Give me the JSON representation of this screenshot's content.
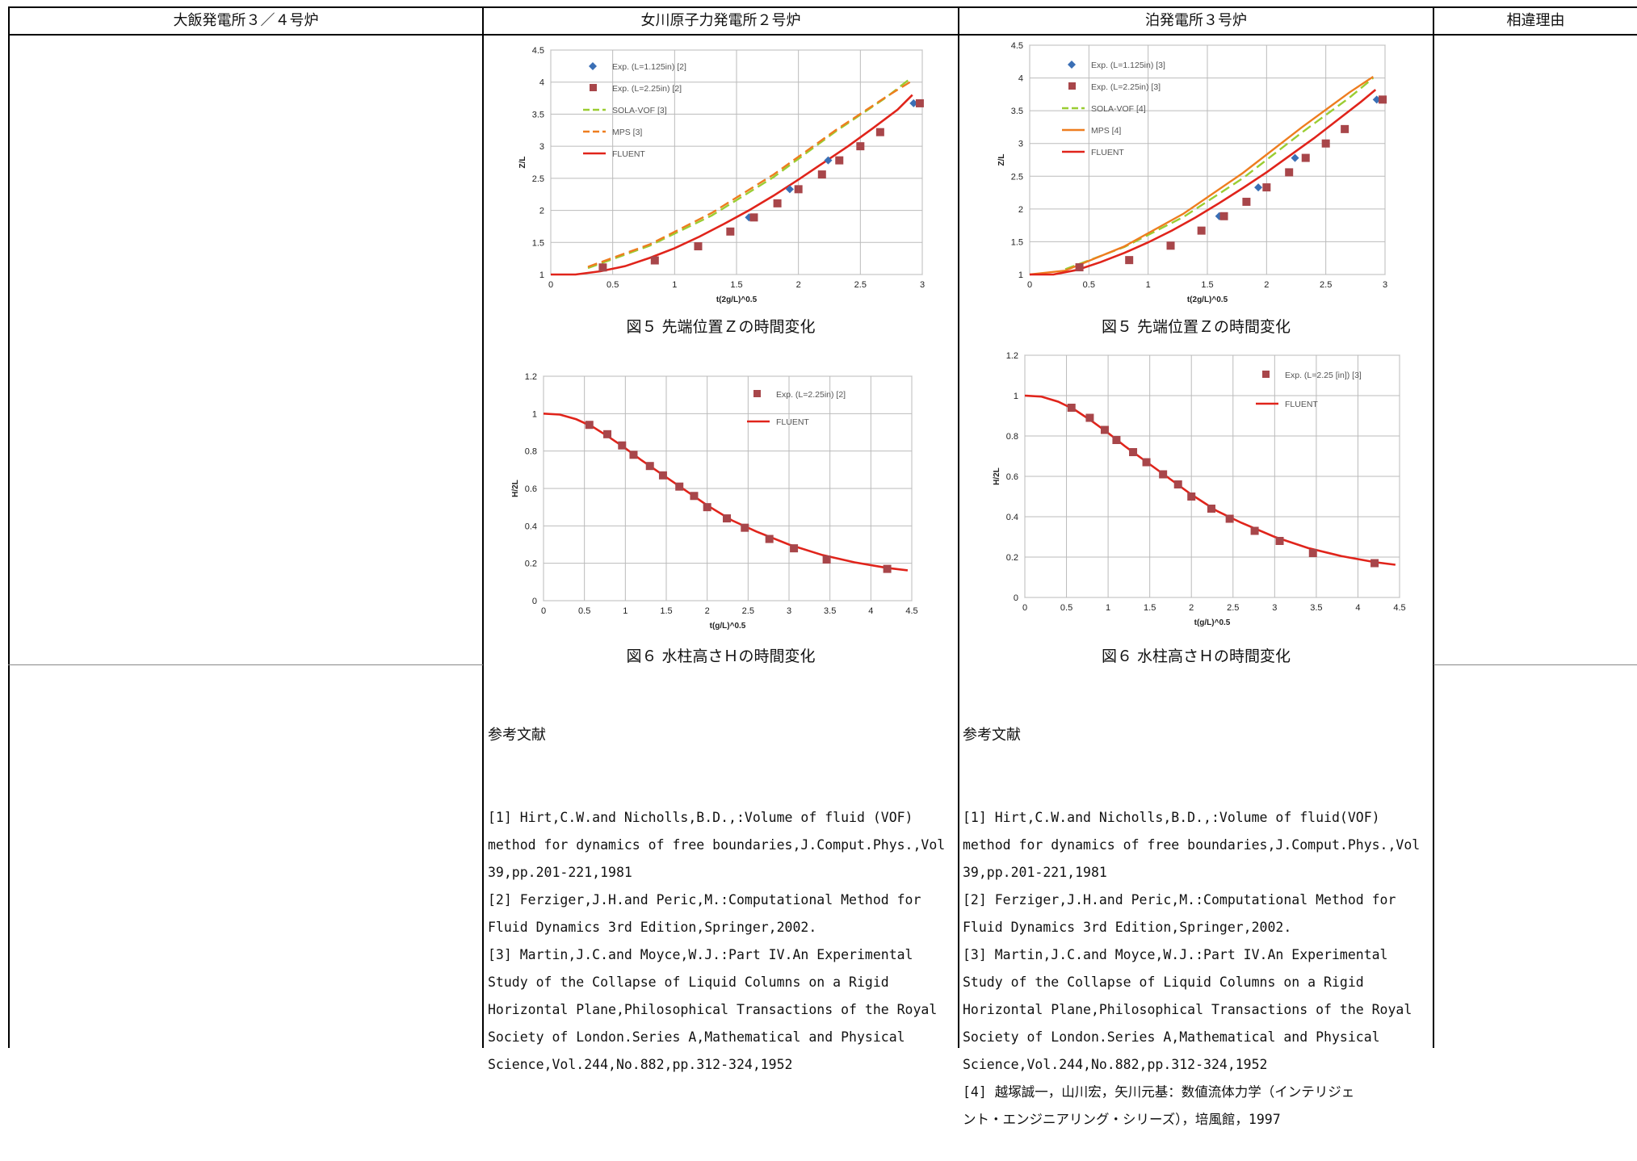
{
  "headers": [
    "大飯発電所３／４号炉",
    "女川原子力発電所２号炉",
    "泊発電所３号炉",
    "相違理由"
  ],
  "columns": {
    "onagawa": {
      "fig5_caption": "図５ 先端位置Ｚの時間変化",
      "fig6_caption": "図６ 水柱高さＨの時間変化",
      "refs_title": "参考文献",
      "refs": [
        "[1] Hirt,C.W.and Nicholls,B.D.,:Volume of fluid (VOF)",
        "method for dynamics of free boundaries,J.Comput.Phys.,Vol",
        "39,pp.201-221,1981",
        "[2] Ferziger,J.H.and Peric,M.:Computational Method for",
        "Fluid Dynamics 3rd Edition,Springer,2002.",
        "[3] Martin,J.C.and Moyce,W.J.:Part IV.An Experimental",
        "Study of the Collapse of Liquid Columns on a Rigid",
        "Horizontal Plane,Philosophical Transactions of the Royal",
        "Society of London.Series A,Mathematical and Physical",
        "Science,Vol.244,No.882,pp.312-324,1952"
      ]
    },
    "tomari": {
      "fig5_caption": "図５ 先端位置Ｚの時間変化",
      "fig6_caption": "図６ 水柱高さＨの時間変化",
      "refs_title": "参考文献",
      "refs": [
        "[1] Hirt,C.W.and Nicholls,B.D.,:Volume of fluid(VOF)",
        "method for dynamics of free boundaries,J.Comput.Phys.,Vol",
        "39,pp.201-221,1981",
        "[2] Ferziger,J.H.and Peric,M.:Computational Method for",
        "Fluid Dynamics 3rd Edition,Springer,2002.",
        "[3] Martin,J.C.and Moyce,W.J.:Part IV.An Experimental",
        "Study of the Collapse of Liquid Columns on a Rigid",
        "Horizontal Plane,Philosophical Transactions of the Royal",
        "Society of London.Series A,Mathematical and Physical",
        "Science,Vol.244,No.882,pp.312-324,1952",
        "[4] 越塚誠一，山川宏，矢川元基：数値流体力学（インテリジェ",
        "ント・エンジニアリング・シリーズ），培風館，1997"
      ]
    }
  },
  "chart_data": [
    {
      "id": "onagawa-fig5",
      "type": "scatter",
      "xlabel": "t(2g/L)^0.5",
      "ylabel": "Z/L",
      "xlim": [
        0,
        3
      ],
      "ylim": [
        1,
        4.5
      ],
      "xticks": [
        "0",
        "0.5",
        "1",
        "1.5",
        "2",
        "2.5",
        "3"
      ],
      "yticks": [
        "1",
        "1.5",
        "2",
        "2.5",
        "3",
        "3.5",
        "4",
        "4.5"
      ],
      "grid": true,
      "legend": "top-left",
      "series": [
        {
          "name": "Exp. (L=1.125in) [2]",
          "kind": "diamond",
          "color": "#3a6fb5",
          "x": [
            1.6,
            1.93,
            2.24,
            2.93
          ],
          "y": [
            1.89,
            2.33,
            2.78,
            3.67
          ]
        },
        {
          "name": "Exp. (L=2.25in) [2]",
          "kind": "square",
          "color": "#a8464a",
          "x": [
            0.42,
            0.84,
            1.19,
            1.45,
            1.64,
            1.83,
            2.0,
            2.19,
            2.33,
            2.5,
            2.66,
            2.98
          ],
          "y": [
            1.11,
            1.22,
            1.44,
            1.67,
            1.89,
            2.11,
            2.33,
            2.56,
            2.78,
            3.0,
            3.22,
            3.67
          ]
        },
        {
          "name": "SOLA-VOF [3]",
          "kind": "line",
          "dash": "dash",
          "color": "#9acd32",
          "x": [
            0.3,
            0.8,
            1.3,
            1.8,
            2.3,
            2.7,
            2.9
          ],
          "y": [
            1.1,
            1.45,
            1.92,
            2.52,
            3.23,
            3.75,
            4.05
          ]
        },
        {
          "name": "MPS [3]",
          "kind": "line",
          "dash": "dash",
          "color": "#ee7d1f",
          "x": [
            0.3,
            0.8,
            1.3,
            1.8,
            2.3,
            2.7,
            2.9
          ],
          "y": [
            1.12,
            1.47,
            1.96,
            2.56,
            3.25,
            3.76,
            4.0
          ]
        },
        {
          "name": "FLUENT",
          "kind": "line",
          "color": "#e0241b",
          "x": [
            0,
            0.2,
            0.4,
            0.6,
            0.8,
            1.0,
            1.2,
            1.4,
            1.6,
            1.8,
            2.0,
            2.2,
            2.4,
            2.6,
            2.8,
            2.92
          ],
          "y": [
            1.0,
            1.0,
            1.05,
            1.13,
            1.26,
            1.41,
            1.59,
            1.79,
            2.0,
            2.23,
            2.48,
            2.74,
            3.0,
            3.28,
            3.57,
            3.8
          ]
        }
      ]
    },
    {
      "id": "tomari-fig5",
      "type": "scatter",
      "xlabel": "t(2g/L)^0.5",
      "ylabel": "Z/L",
      "xlim": [
        0,
        3
      ],
      "ylim": [
        1,
        4.5
      ],
      "xticks": [
        "0",
        "0.5",
        "1",
        "1.5",
        "2",
        "2.5",
        "3"
      ],
      "yticks": [
        "1",
        "1.5",
        "2",
        "2.5",
        "3",
        "3.5",
        "4",
        "4.5"
      ],
      "grid": true,
      "legend": "top-left",
      "series": [
        {
          "name": "Exp. (L=1.125in) [3]",
          "kind": "diamond",
          "color": "#3a6fb5",
          "x": [
            1.6,
            1.93,
            2.24,
            2.93
          ],
          "y": [
            1.89,
            2.33,
            2.78,
            3.67
          ]
        },
        {
          "name": "Exp. (L=2.25in) [3]",
          "kind": "square",
          "color": "#a8464a",
          "x": [
            0.42,
            0.84,
            1.19,
            1.45,
            1.64,
            1.83,
            2.0,
            2.19,
            2.33,
            2.5,
            2.66,
            2.98
          ],
          "y": [
            1.11,
            1.22,
            1.44,
            1.67,
            1.89,
            2.11,
            2.33,
            2.56,
            2.78,
            3.0,
            3.22,
            3.67
          ]
        },
        {
          "name": "SOLA-VOF [4]",
          "kind": "line",
          "dash": "dash",
          "color": "#9acd32",
          "x": [
            0.3,
            0.8,
            1.3,
            1.8,
            2.3,
            2.7,
            2.9
          ],
          "y": [
            1.08,
            1.42,
            1.88,
            2.47,
            3.17,
            3.7,
            4.0
          ]
        },
        {
          "name": "MPS [4]",
          "kind": "line",
          "dash": "solid",
          "color": "#ee7d1f",
          "x": [
            0,
            0.3,
            0.8,
            1.3,
            1.8,
            2.3,
            2.7,
            2.9
          ],
          "y": [
            1.0,
            1.06,
            1.43,
            1.93,
            2.55,
            3.25,
            3.78,
            4.02
          ]
        },
        {
          "name": "FLUENT",
          "kind": "line",
          "color": "#e0241b",
          "x": [
            0,
            0.2,
            0.4,
            0.6,
            0.8,
            1.0,
            1.2,
            1.4,
            1.6,
            1.8,
            2.0,
            2.2,
            2.4,
            2.6,
            2.8,
            2.92
          ],
          "y": [
            1.0,
            1.0,
            1.07,
            1.19,
            1.33,
            1.49,
            1.67,
            1.87,
            2.09,
            2.32,
            2.56,
            2.82,
            3.08,
            3.36,
            3.64,
            3.82
          ]
        }
      ]
    },
    {
      "id": "onagawa-fig6",
      "type": "scatter",
      "xlabel": "t(g/L)^0.5",
      "ylabel": "H/2L",
      "xlim": [
        0,
        4.5
      ],
      "ylim": [
        0,
        1.2
      ],
      "xticks": [
        "0",
        "0.5",
        "1",
        "1.5",
        "2",
        "2.5",
        "3",
        "3.5",
        "4",
        "4.5"
      ],
      "yticks": [
        "0",
        "0.2",
        "0.4",
        "0.6",
        "0.8",
        "1",
        "1.2"
      ],
      "grid": true,
      "legend": "top-right",
      "series": [
        {
          "name": "Exp. (L=2.25in) [2]",
          "kind": "square",
          "color": "#a8464a",
          "x": [
            0.56,
            0.78,
            0.96,
            1.1,
            1.3,
            1.46,
            1.66,
            1.84,
            2.0,
            2.24,
            2.46,
            2.76,
            3.06,
            3.46,
            4.2
          ],
          "y": [
            0.94,
            0.89,
            0.83,
            0.78,
            0.72,
            0.67,
            0.61,
            0.56,
            0.5,
            0.44,
            0.39,
            0.33,
            0.28,
            0.22,
            0.17
          ]
        },
        {
          "name": "FLUENT",
          "kind": "line",
          "color": "#e0241b",
          "x": [
            0,
            0.2,
            0.4,
            0.6,
            0.8,
            1.0,
            1.2,
            1.4,
            1.6,
            1.8,
            2.0,
            2.3,
            2.6,
            3.0,
            3.4,
            3.8,
            4.2,
            4.45
          ],
          "y": [
            1.0,
            0.995,
            0.97,
            0.93,
            0.875,
            0.815,
            0.75,
            0.69,
            0.63,
            0.57,
            0.51,
            0.43,
            0.37,
            0.3,
            0.245,
            0.205,
            0.175,
            0.162
          ]
        }
      ]
    },
    {
      "id": "tomari-fig6",
      "type": "scatter",
      "xlabel": "t(g/L)^0.5",
      "ylabel": "H/2L",
      "xlim": [
        0,
        4.5
      ],
      "ylim": [
        0,
        1.2
      ],
      "xticks": [
        "0",
        "0.5",
        "1",
        "1.5",
        "2",
        "2.5",
        "3",
        "3.5",
        "4",
        "4.5"
      ],
      "yticks": [
        "0",
        "0.2",
        "0.4",
        "0.6",
        "0.8",
        "1",
        "1.2"
      ],
      "grid": true,
      "legend": "top-right",
      "series": [
        {
          "name": "Exp. (L=2.25 [in]) [3]",
          "kind": "square",
          "color": "#a8464a",
          "x": [
            0.56,
            0.78,
            0.96,
            1.1,
            1.3,
            1.46,
            1.66,
            1.84,
            2.0,
            2.24,
            2.46,
            2.76,
            3.06,
            3.46,
            4.2
          ],
          "y": [
            0.94,
            0.89,
            0.83,
            0.78,
            0.72,
            0.67,
            0.61,
            0.56,
            0.5,
            0.44,
            0.39,
            0.33,
            0.28,
            0.22,
            0.17
          ]
        },
        {
          "name": "FLUENT",
          "kind": "line",
          "color": "#e0241b",
          "x": [
            0,
            0.2,
            0.4,
            0.6,
            0.8,
            1.0,
            1.2,
            1.4,
            1.6,
            1.8,
            2.0,
            2.3,
            2.6,
            3.0,
            3.4,
            3.8,
            4.2,
            4.45
          ],
          "y": [
            1.0,
            0.995,
            0.97,
            0.93,
            0.875,
            0.815,
            0.75,
            0.69,
            0.63,
            0.57,
            0.51,
            0.43,
            0.37,
            0.3,
            0.245,
            0.205,
            0.175,
            0.162
          ]
        }
      ]
    }
  ]
}
